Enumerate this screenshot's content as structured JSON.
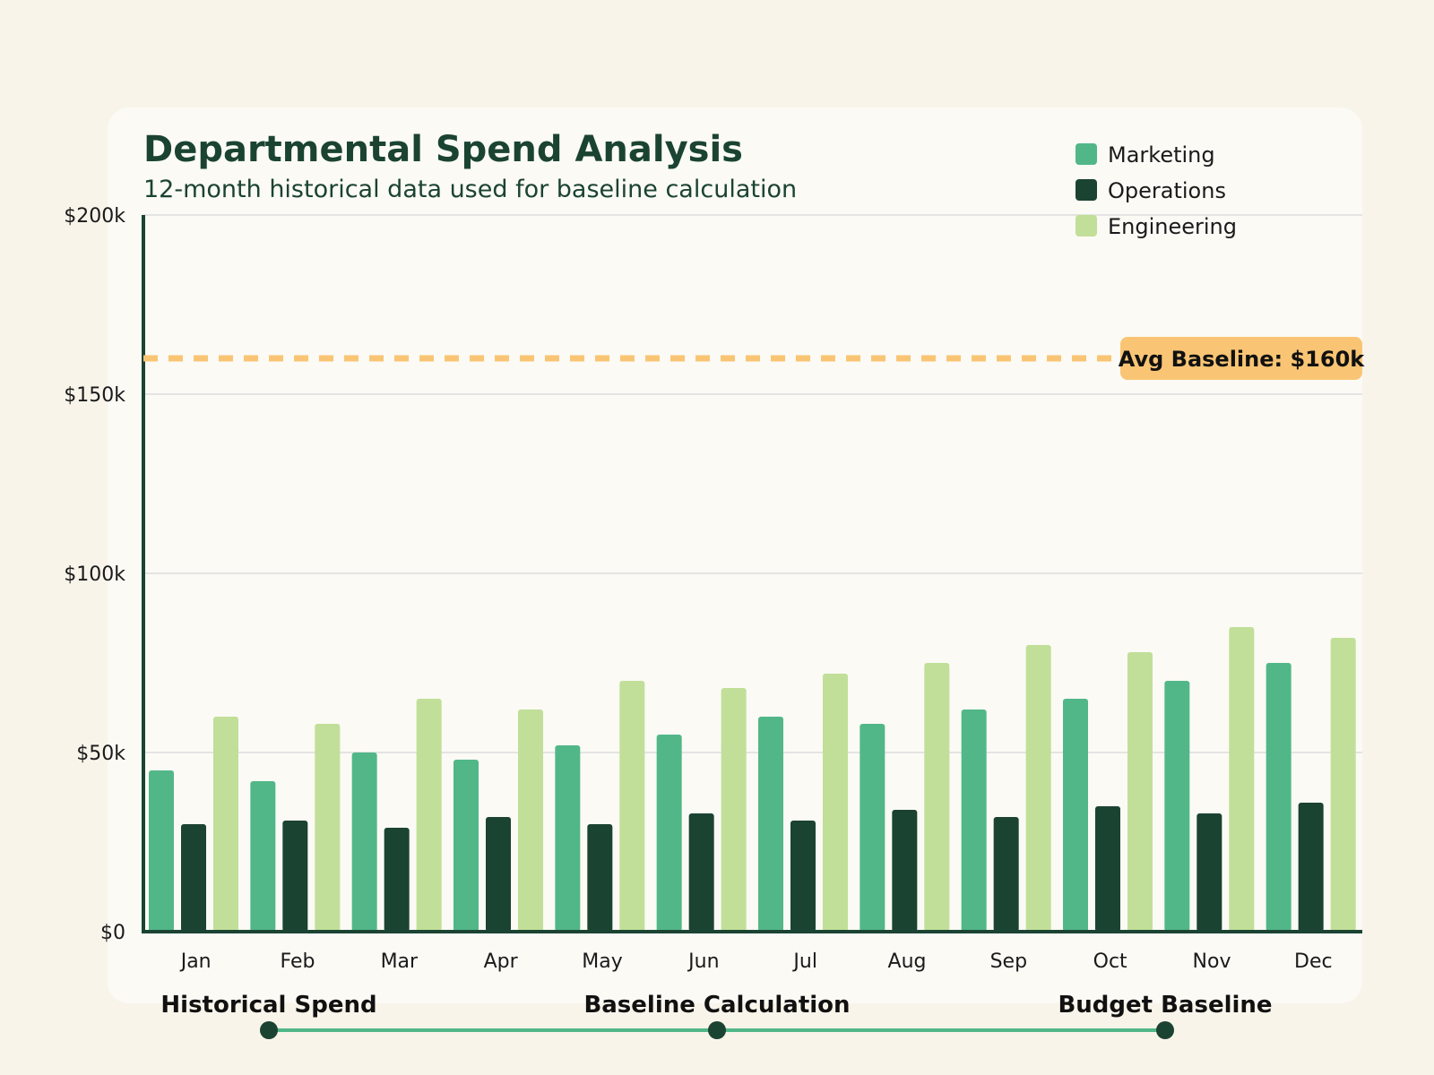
{
  "chart_data": {
    "type": "bar",
    "title": "Departmental Spend Analysis",
    "subtitle": "12-month historical data used for baseline calculation",
    "xlabel": "",
    "ylabel": "",
    "categories": [
      "Jan",
      "Feb",
      "Mar",
      "Apr",
      "May",
      "Jun",
      "Jul",
      "Aug",
      "Sep",
      "Oct",
      "Nov",
      "Dec"
    ],
    "series": [
      {
        "name": "Marketing",
        "color": "#52b788",
        "values": [
          45,
          42,
          50,
          48,
          52,
          55,
          60,
          58,
          62,
          65,
          70,
          75
        ]
      },
      {
        "name": "Operations",
        "color": "#1b4332",
        "values": [
          30,
          31,
          29,
          32,
          30,
          33,
          31,
          34,
          32,
          35,
          33,
          36
        ]
      },
      {
        "name": "Engineering",
        "color": "#c1df98",
        "values": [
          60,
          58,
          65,
          62,
          70,
          68,
          72,
          75,
          80,
          78,
          85,
          82
        ]
      }
    ],
    "value_unit": "thousands USD",
    "ylim": [
      0,
      200
    ],
    "yticks": [
      {
        "value": 0,
        "label": "$0"
      },
      {
        "value": 50,
        "label": "$50k"
      },
      {
        "value": 100,
        "label": "$100k"
      },
      {
        "value": 150,
        "label": "$150k"
      },
      {
        "value": 200,
        "label": "$200k"
      }
    ],
    "grid": true,
    "legend_position": "top-right",
    "reference_line": {
      "value": 160,
      "label": "Avg Baseline: $160k",
      "color": "#f9c574"
    }
  },
  "process_steps": [
    {
      "label": "Historical Spend"
    },
    {
      "label": "Baseline Calculation"
    },
    {
      "label": "Budget Baseline"
    }
  ],
  "colors": {
    "background": "#f8f4ea",
    "card": "#fbfaf5",
    "axis": "#1b4332",
    "grid": "#dddddd",
    "flow_line": "#52b788",
    "flow_dot": "#1b4332"
  }
}
